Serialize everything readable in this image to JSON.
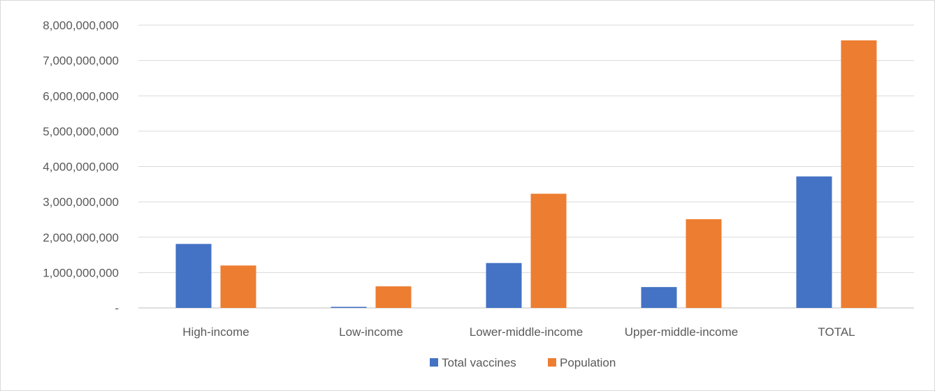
{
  "chart_data": {
    "type": "bar",
    "categories": [
      "High-income",
      "Low-income",
      "Lower-middle-income",
      "Upper-middle-income",
      "TOTAL"
    ],
    "series": [
      {
        "name": "Total vaccines",
        "color": "#4472C4",
        "values": [
          1810000000,
          30000000,
          1270000000,
          590000000,
          3720000000
        ]
      },
      {
        "name": "Population",
        "color": "#ED7D31",
        "values": [
          1200000000,
          610000000,
          3230000000,
          2510000000,
          7570000000
        ]
      }
    ],
    "ylim": [
      0,
      8000000000
    ],
    "yticks": [
      0,
      1000000000,
      2000000000,
      3000000000,
      4000000000,
      5000000000,
      6000000000,
      7000000000,
      8000000000
    ],
    "ytick_labels": [
      "-",
      "1,000,000,000",
      "2,000,000,000",
      "3,000,000,000",
      "4,000,000,000",
      "5,000,000,000",
      "6,000,000,000",
      "7,000,000,000",
      "8,000,000,000"
    ],
    "grid": true,
    "legend_position": "bottom",
    "gridline_color": "#d9d9d9",
    "axis_color": "#bfbfbf"
  }
}
